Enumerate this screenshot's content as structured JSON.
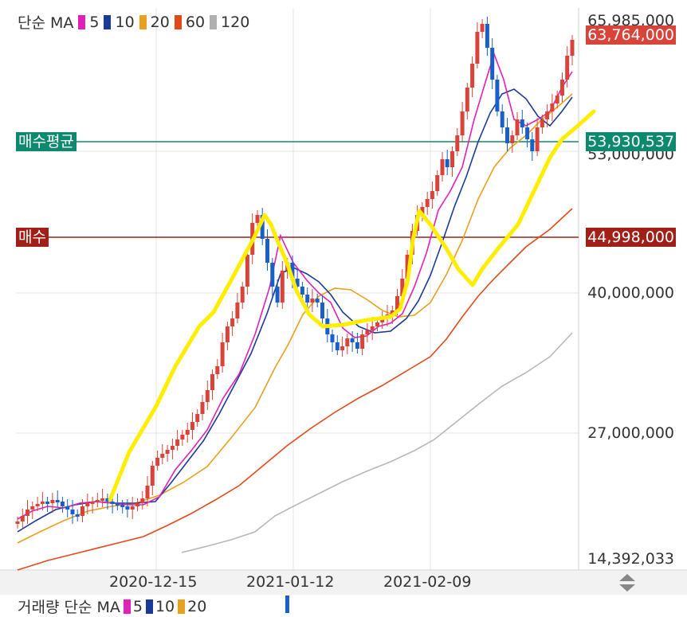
{
  "legend": {
    "prefix": "단순 MA",
    "items": [
      {
        "label": "5",
        "color": "#e020b8"
      },
      {
        "label": "10",
        "color": "#1a3a9a"
      },
      {
        "label": "20",
        "color": "#e8a020"
      },
      {
        "label": "60",
        "color": "#e04a1a"
      },
      {
        "label": "120",
        "color": "#b0b0b0"
      }
    ]
  },
  "volume_legend": {
    "prefix": "거래량 단순 MA",
    "items": [
      {
        "label": "5",
        "color": "#e020b8"
      },
      {
        "label": "10",
        "color": "#1a3a9a"
      },
      {
        "label": "20",
        "color": "#e8a020"
      }
    ]
  },
  "price_labels": {
    "top": "65,985,000",
    "current": "63,764,000",
    "avg": "53,930,537",
    "avg_hidden": "53,000,000",
    "buy": "44,998,000",
    "p40m": "40,000,000",
    "p27m": "27,000,000",
    "bottom": "14,392,033"
  },
  "hlines": {
    "avg_label": "매수평균",
    "buy_label": "매수",
    "avg_color": "#0d8a6e",
    "buy_color": "#a02018",
    "current_color": "#d9443a"
  },
  "chart_data": {
    "type": "candlestick",
    "xlabels": [
      "2020-12-15",
      "2021-01-12",
      "2021-02-09"
    ],
    "yticks": [
      14392033,
      27000000,
      40000000,
      65985000
    ],
    "ylim": [
      14392033,
      65985000
    ],
    "last_price": 63764000,
    "avg_buy_price": 53930537,
    "buy_price": 44998000,
    "up_color": "#d9443a",
    "down_color": "#1a5ec8",
    "series_names": [
      "MA5",
      "MA10",
      "MA20",
      "MA60",
      "MA120"
    ],
    "annotation_color": "#ffee00"
  }
}
